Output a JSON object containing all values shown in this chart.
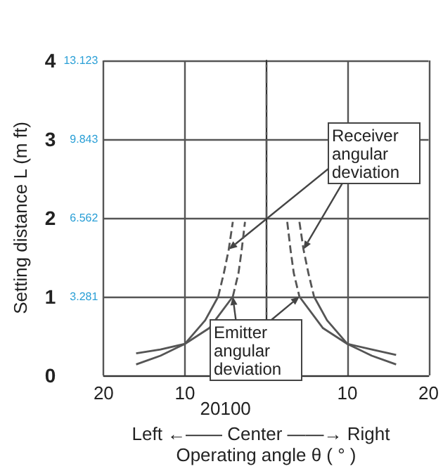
{
  "chart_data": {
    "type": "line",
    "xlabel": "Operating angle θ ( ° )",
    "ylabel": "Setting distance L (m ft)",
    "xlim": [
      -20,
      20
    ],
    "xticks": [
      {
        "value": -20,
        "label": "20"
      },
      {
        "value": -10,
        "label": "10"
      },
      {
        "value": 0,
        "label": null
      },
      {
        "value": 10,
        "label": "10"
      },
      {
        "value": 20,
        "label": "20"
      }
    ],
    "ylim": [
      0,
      4
    ],
    "yticks": [
      0,
      1,
      2,
      3,
      4
    ],
    "y2lim": [
      0,
      13.123
    ],
    "y2ticks": [
      3.281,
      6.562,
      9.843,
      13.123
    ],
    "grid": true,
    "marker": "none",
    "series": [
      {
        "color": "#555555",
        "line_style": "solid",
        "x": [
          -16,
          -13,
          -10,
          -7.5,
          -5.9
        ],
        "values": [
          0.14,
          0.25,
          0.4,
          0.7,
          1.0
        ]
      },
      {
        "color": "#555555",
        "line_style": "dashed",
        "x": [
          -5.9,
          -5.2,
          -4.6,
          -4.1
        ],
        "values": [
          1.0,
          1.3,
          1.6,
          1.95
        ]
      },
      {
        "color": "#555555",
        "line_style": "solid",
        "x": [
          -16,
          -13,
          -10,
          -7,
          -4.1
        ],
        "values": [
          0.28,
          0.33,
          0.4,
          0.6,
          1.0
        ]
      },
      {
        "color": "#555555",
        "line_style": "dashed",
        "x": [
          -4.1,
          -3.4,
          -3,
          -2.6
        ],
        "values": [
          1.0,
          1.3,
          1.6,
          1.95
        ]
      },
      {
        "color": "#555555",
        "line_style": "dashed",
        "x": [
          2.6,
          3,
          3.4,
          4.1
        ],
        "values": [
          1.95,
          1.6,
          1.3,
          1.0
        ]
      },
      {
        "color": "#555555",
        "line_style": "solid",
        "x": [
          4.1,
          7,
          10,
          13,
          16
        ],
        "values": [
          1.0,
          0.6,
          0.4,
          0.33,
          0.26
        ]
      },
      {
        "color": "#555555",
        "line_style": "dashed",
        "x": [
          4.1,
          4.6,
          5.2,
          5.9
        ],
        "values": [
          1.95,
          1.6,
          1.3,
          1.0
        ]
      },
      {
        "color": "#555555",
        "line_style": "solid",
        "x": [
          5.9,
          7.5,
          10,
          13,
          16
        ],
        "values": [
          1.0,
          0.7,
          0.4,
          0.25,
          0.14
        ]
      }
    ],
    "ref_lines": [
      {
        "axis": "x",
        "value": 0,
        "line_style": "dashed",
        "color": "#555555"
      }
    ],
    "annotations": [
      {
        "text": "Receiver angular deviation",
        "x": -4.6,
        "y": 1.6
      },
      {
        "text": "Emitter angular deviation",
        "x": 4.1,
        "y": 1.0
      },
      "Left ←—— Center ——→ Right",
      "20100"
    ]
  }
}
